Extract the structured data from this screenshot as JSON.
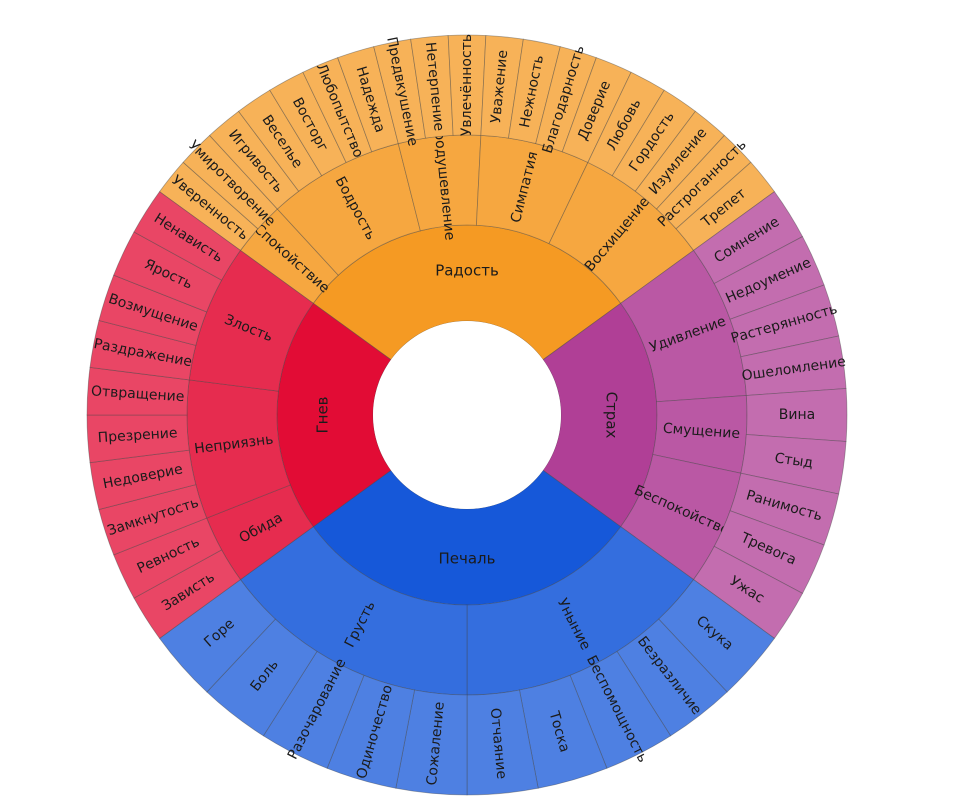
{
  "wheel": {
    "groups": [
      {
        "label": "Радость",
        "color": "#f59a23",
        "children": [
          {
            "label": "Спокойствие",
            "leaves": [
              "Уверенность",
              "Умиротворение"
            ]
          },
          {
            "label": "Бодрость",
            "leaves": [
              "Игривость",
              "Веселье",
              "Восторг",
              "Любопытство",
              "Надежда"
            ]
          },
          {
            "label": "Воодушевление",
            "leaves": [
              "Предвкушение",
              "Нетерпение",
              "Увлечённость"
            ]
          },
          {
            "label": "Симпатия",
            "leaves": [
              "Уважение",
              "Нежность",
              "Благодарность",
              "Доверие"
            ]
          },
          {
            "label": "Восхищение",
            "leaves": [
              "Любовь",
              "Гордость",
              "Изумление",
              "Растроганность",
              "Трепет"
            ]
          }
        ]
      },
      {
        "label": "Страх",
        "color": "#b03f96",
        "children": [
          {
            "label": "Удивление",
            "leaves": [
              "Сомнение",
              "Недоумение",
              "Растерянность",
              "Ошеломление"
            ]
          },
          {
            "label": "Смущение",
            "leaves": [
              "Вина",
              "Стыд"
            ]
          },
          {
            "label": "Беспокойство",
            "leaves": [
              "Ранимость",
              "Тревога",
              "Ужас"
            ]
          }
        ]
      },
      {
        "label": "Печаль",
        "color": "#1658d9",
        "children": [
          {
            "label": "Уныние",
            "leaves": [
              "Скука",
              "Безразличие",
              "Беспомощность",
              "Тоска",
              "Отчаяние"
            ]
          },
          {
            "label": "Грусть",
            "leaves": [
              "Сожаление",
              "Одиночество",
              "Разочарование",
              "Боль",
              "Горе"
            ]
          }
        ]
      },
      {
        "label": "Гнев",
        "color": "#e20c35",
        "children": [
          {
            "label": "Обида",
            "leaves": [
              "Зависть",
              "Ревность"
            ]
          },
          {
            "label": "Неприязнь",
            "leaves": [
              "Замкнутость",
              "Недоверие",
              "Презрение",
              "Отвращение"
            ]
          },
          {
            "label": "Злость",
            "leaves": [
              "Раздражение",
              "Возмущение",
              "Ярость",
              "Ненависть"
            ]
          }
        ]
      }
    ]
  }
}
